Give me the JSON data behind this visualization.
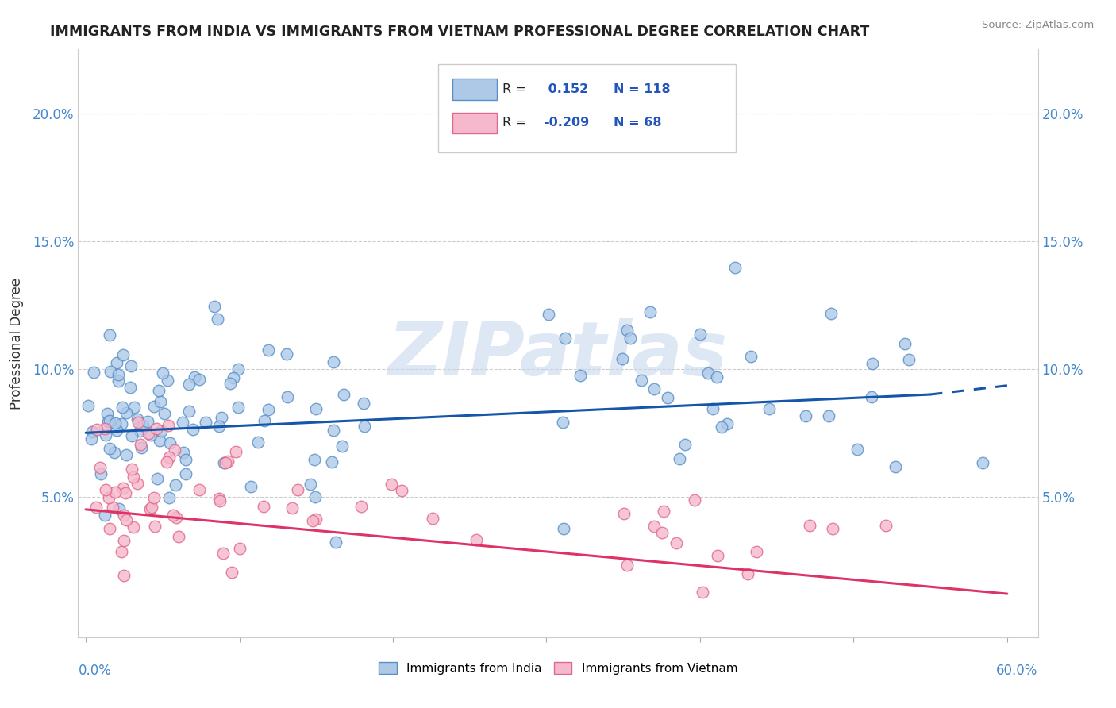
{
  "title": "IMMIGRANTS FROM INDIA VS IMMIGRANTS FROM VIETNAM PROFESSIONAL DEGREE CORRELATION CHART",
  "source": "Source: ZipAtlas.com",
  "ylabel": "Professional Degree",
  "y_ticks": [
    0.0,
    0.05,
    0.1,
    0.15,
    0.2
  ],
  "y_tick_labels": [
    "",
    "5.0%",
    "10.0%",
    "15.0%",
    "20.0%"
  ],
  "x_ticks": [
    0.0,
    0.1,
    0.2,
    0.3,
    0.4,
    0.5,
    0.6
  ],
  "xlim": [
    -0.005,
    0.62
  ],
  "ylim": [
    -0.005,
    0.225
  ],
  "india_color": "#aec8e8",
  "vietnam_color": "#f5b8cc",
  "india_edge_color": "#5590c8",
  "vietnam_edge_color": "#e06888",
  "india_line_color": "#1555aa",
  "vietnam_line_color": "#dd3366",
  "india_R": 0.152,
  "india_N": 118,
  "vietnam_R": -0.209,
  "vietnam_N": 68,
  "legend_label_india": "Immigrants from India",
  "legend_label_vietnam": "Immigrants from Vietnam",
  "watermark": "ZIPatlas",
  "india_trend_x0": 0.0,
  "india_trend_y0": 0.075,
  "india_trend_x1": 0.55,
  "india_trend_y1": 0.09,
  "india_trend_dash_x1": 0.6,
  "india_trend_dash_y1": 0.0935,
  "vietnam_trend_x0": 0.0,
  "vietnam_trend_y0": 0.045,
  "vietnam_trend_x1": 0.6,
  "vietnam_trend_y1": 0.012
}
